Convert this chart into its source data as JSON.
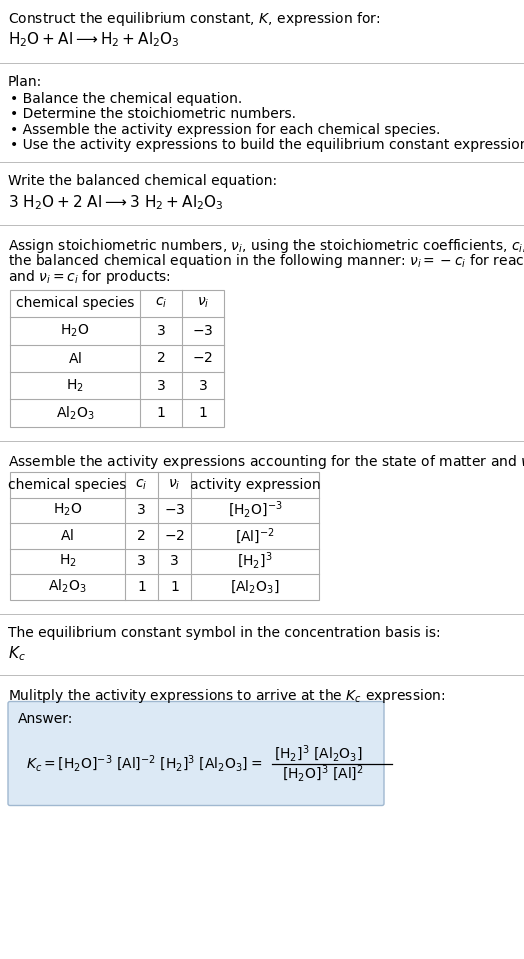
{
  "bg_color": "#ffffff",
  "title_line1": "Construct the equilibrium constant, $K$, expression for:",
  "title_line2": "$\\mathrm{H_2O + Al} \\longrightarrow \\mathrm{H_2 + Al_2O_3}$",
  "plan_header": "Plan:",
  "plan_items": [
    "• Balance the chemical equation.",
    "• Determine the stoichiometric numbers.",
    "• Assemble the activity expression for each chemical species.",
    "• Use the activity expressions to build the equilibrium constant expression."
  ],
  "balanced_header": "Write the balanced chemical equation:",
  "balanced_eq": "$3\\ \\mathrm{H_2O} + 2\\ \\mathrm{Al} \\longrightarrow 3\\ \\mathrm{H_2} + \\mathrm{Al_2O_3}$",
  "table1_headers": [
    "chemical species",
    "$c_i$",
    "$\\nu_i$"
  ],
  "table1_rows": [
    [
      "$\\mathrm{H_2O}$",
      "3",
      "$-3$"
    ],
    [
      "$\\mathrm{Al}$",
      "2",
      "$-2$"
    ],
    [
      "$\\mathrm{H_2}$",
      "3",
      "3"
    ],
    [
      "$\\mathrm{Al_2O_3}$",
      "1",
      "1"
    ]
  ],
  "table2_headers": [
    "chemical species",
    "$c_i$",
    "$\\nu_i$",
    "activity expression"
  ],
  "table2_rows": [
    [
      "$\\mathrm{H_2O}$",
      "3",
      "$-3$",
      "$[\\mathrm{H_2O}]^{-3}$"
    ],
    [
      "$\\mathrm{Al}$",
      "2",
      "$-2$",
      "$[\\mathrm{Al}]^{-2}$"
    ],
    [
      "$\\mathrm{H_2}$",
      "3",
      "3",
      "$[\\mathrm{H_2}]^3$"
    ],
    [
      "$\\mathrm{Al_2O_3}$",
      "1",
      "1",
      "$[\\mathrm{Al_2O_3}]$"
    ]
  ],
  "kc_header": "The equilibrium constant symbol in the concentration basis is:",
  "kc_symbol": "$K_c$",
  "multiply_header": "Mulitply the activity expressions to arrive at the $K_c$ expression:",
  "answer_label": "Answer:",
  "answer_box_color": "#dce9f5",
  "answer_box_border": "#a0b8d0",
  "line_color": "#bbbbbb",
  "table_line_color": "#aaaaaa",
  "font_size": 10,
  "stoich_lines": [
    "Assign stoichiometric numbers, $\\nu_i$, using the stoichiometric coefficients, $c_i$, from",
    "the balanced chemical equation in the following manner: $\\nu_i = -c_i$ for reactants",
    "and $\\nu_i = c_i$ for products:"
  ],
  "assemble_line": "Assemble the activity expressions accounting for the state of matter and $\\nu_i$:"
}
